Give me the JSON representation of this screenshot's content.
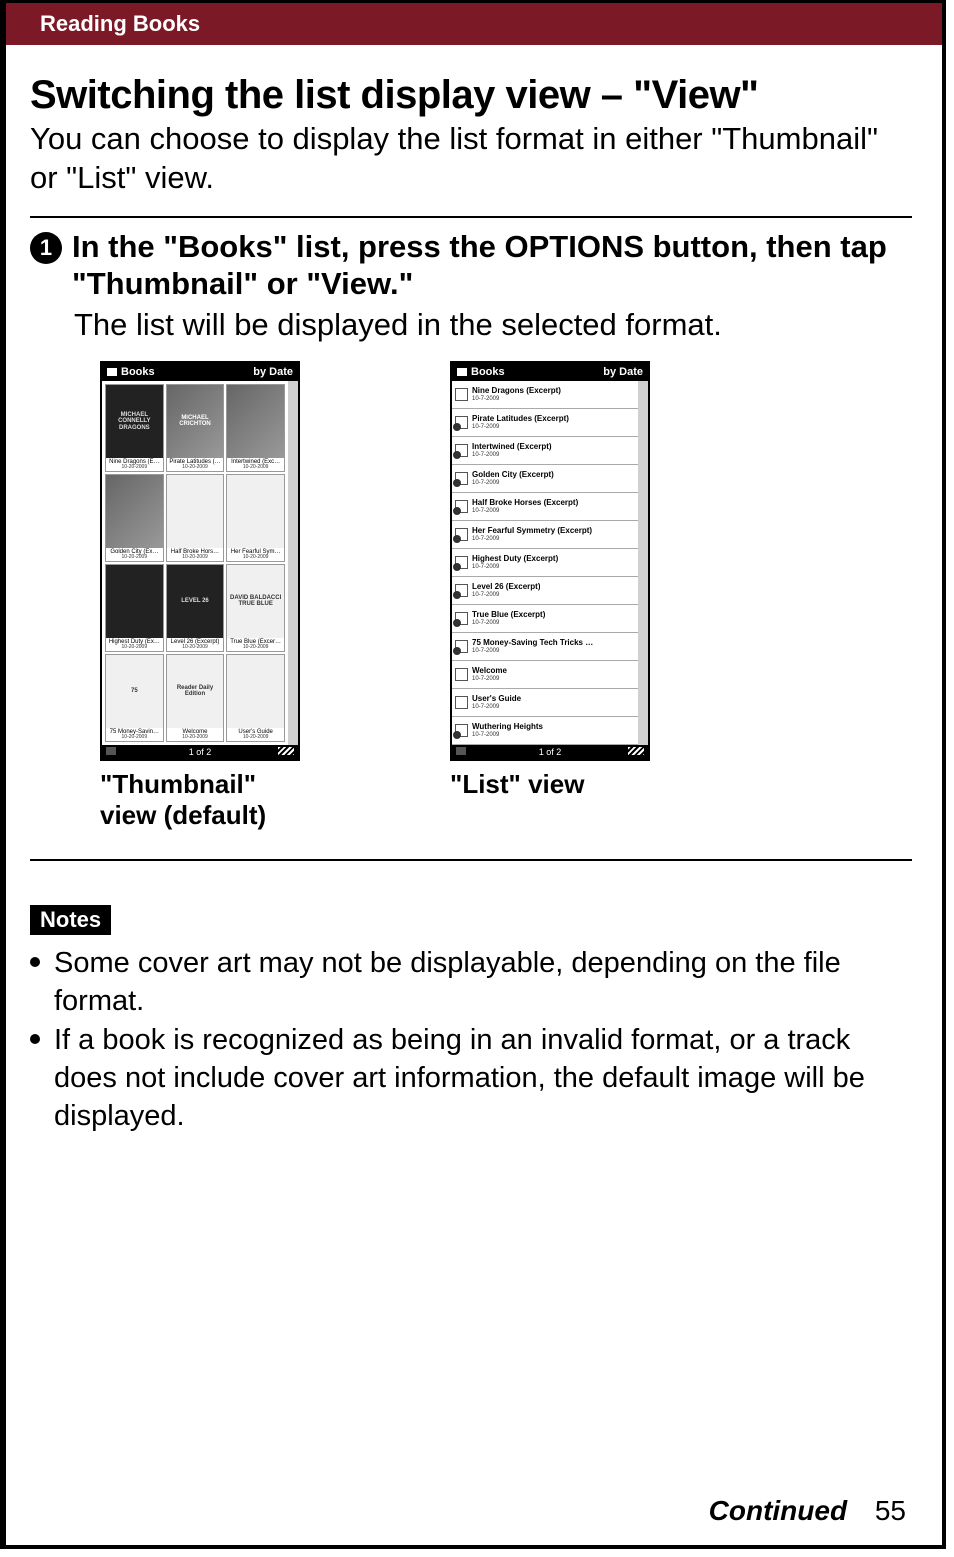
{
  "header": {
    "section": "Reading Books"
  },
  "title": "Switching the list display view – \"View\"",
  "subtitle": "You can choose to display the list format in either \"Thumbnail\" or \"List\" view.",
  "step": {
    "num": "1",
    "heading": "In the \"Books\" list, press the OPTIONS button, then tap \"Thumbnail\" or \"View.\"",
    "sub": "The list will be displayed in the selected format."
  },
  "thumbnail_view": {
    "device_title": "Books",
    "device_sort": "by Date",
    "pager": "1 of 2",
    "caption": "\"Thumbnail\" view (default)",
    "cells": [
      {
        "cover": "MICHAEL\nCONNELLY\nDRAGONS",
        "style": "dark",
        "title": "Nine Dragons (E…",
        "date": "10-20-2009"
      },
      {
        "cover": "MICHAEL\nCRICHTON",
        "style": "",
        "title": "Pirate Latitudes (…",
        "date": "10-20-2009"
      },
      {
        "cover": "",
        "style": "",
        "title": "Intertwined (Exc…",
        "date": "10-20-2009"
      },
      {
        "cover": "",
        "style": "",
        "title": "Golden City (Ex…",
        "date": "10-20-2009"
      },
      {
        "cover": "",
        "style": "lite",
        "title": "Half Broke Hors…",
        "date": "10-20-2009"
      },
      {
        "cover": "",
        "style": "lite",
        "title": "Her Fearful Sym…",
        "date": "10-20-2009"
      },
      {
        "cover": "",
        "style": "dark",
        "title": "Highest Duty (Ex…",
        "date": "10-20-2009"
      },
      {
        "cover": "LEVEL 26",
        "style": "dark",
        "title": "Level 26 (Excerpt)",
        "date": "10-20-2009"
      },
      {
        "cover": "DAVID\nBALDACCI\nTRUE\nBLUE",
        "style": "lite",
        "title": "True Blue (Excer…",
        "date": "10-20-2009"
      },
      {
        "cover": "75",
        "style": "lite",
        "title": "75 Money-Savin…",
        "date": "10-20-2009"
      },
      {
        "cover": "Reader\nDaily Edition",
        "style": "lite",
        "title": "Welcome",
        "date": "10-20-2009"
      },
      {
        "cover": "",
        "style": "lite",
        "title": "User's Guide",
        "date": "10-20-2009"
      }
    ]
  },
  "list_view": {
    "device_title": "Books",
    "device_sort": "by Date",
    "pager": "1 of 2",
    "caption": "\"List\" view",
    "rows": [
      {
        "title": "Nine Dragons (Excerpt)",
        "date": "10-7-2009",
        "new": false
      },
      {
        "title": "Pirate Latitudes (Excerpt)",
        "date": "10-7-2009",
        "new": true
      },
      {
        "title": "Intertwined (Excerpt)",
        "date": "10-7-2009",
        "new": true
      },
      {
        "title": "Golden City (Excerpt)",
        "date": "10-7-2009",
        "new": true
      },
      {
        "title": "Half Broke Horses (Excerpt)",
        "date": "10-7-2009",
        "new": true
      },
      {
        "title": "Her Fearful Symmetry (Excerpt)",
        "date": "10-7-2009",
        "new": true
      },
      {
        "title": "Highest Duty (Excerpt)",
        "date": "10-7-2009",
        "new": true
      },
      {
        "title": "Level 26 (Excerpt)",
        "date": "10-7-2009",
        "new": true
      },
      {
        "title": "True Blue (Excerpt)",
        "date": "10-7-2009",
        "new": true
      },
      {
        "title": "75 Money-Saving Tech Tricks …",
        "date": "10-7-2009",
        "new": true
      },
      {
        "title": "Welcome",
        "date": "10-7-2009",
        "new": false
      },
      {
        "title": "User's Guide",
        "date": "10-7-2009",
        "new": false
      },
      {
        "title": "Wuthering Heights",
        "date": "10-7-2009",
        "new": true
      }
    ]
  },
  "notes": {
    "label": "Notes",
    "items": [
      "Some cover art may not be displayable, depending on the file format.",
      "If a book is recognized as being in an invalid format, or a track does not include cover art information, the default image will be displayed."
    ]
  },
  "footer": {
    "continued": "Continued",
    "page": "55"
  }
}
